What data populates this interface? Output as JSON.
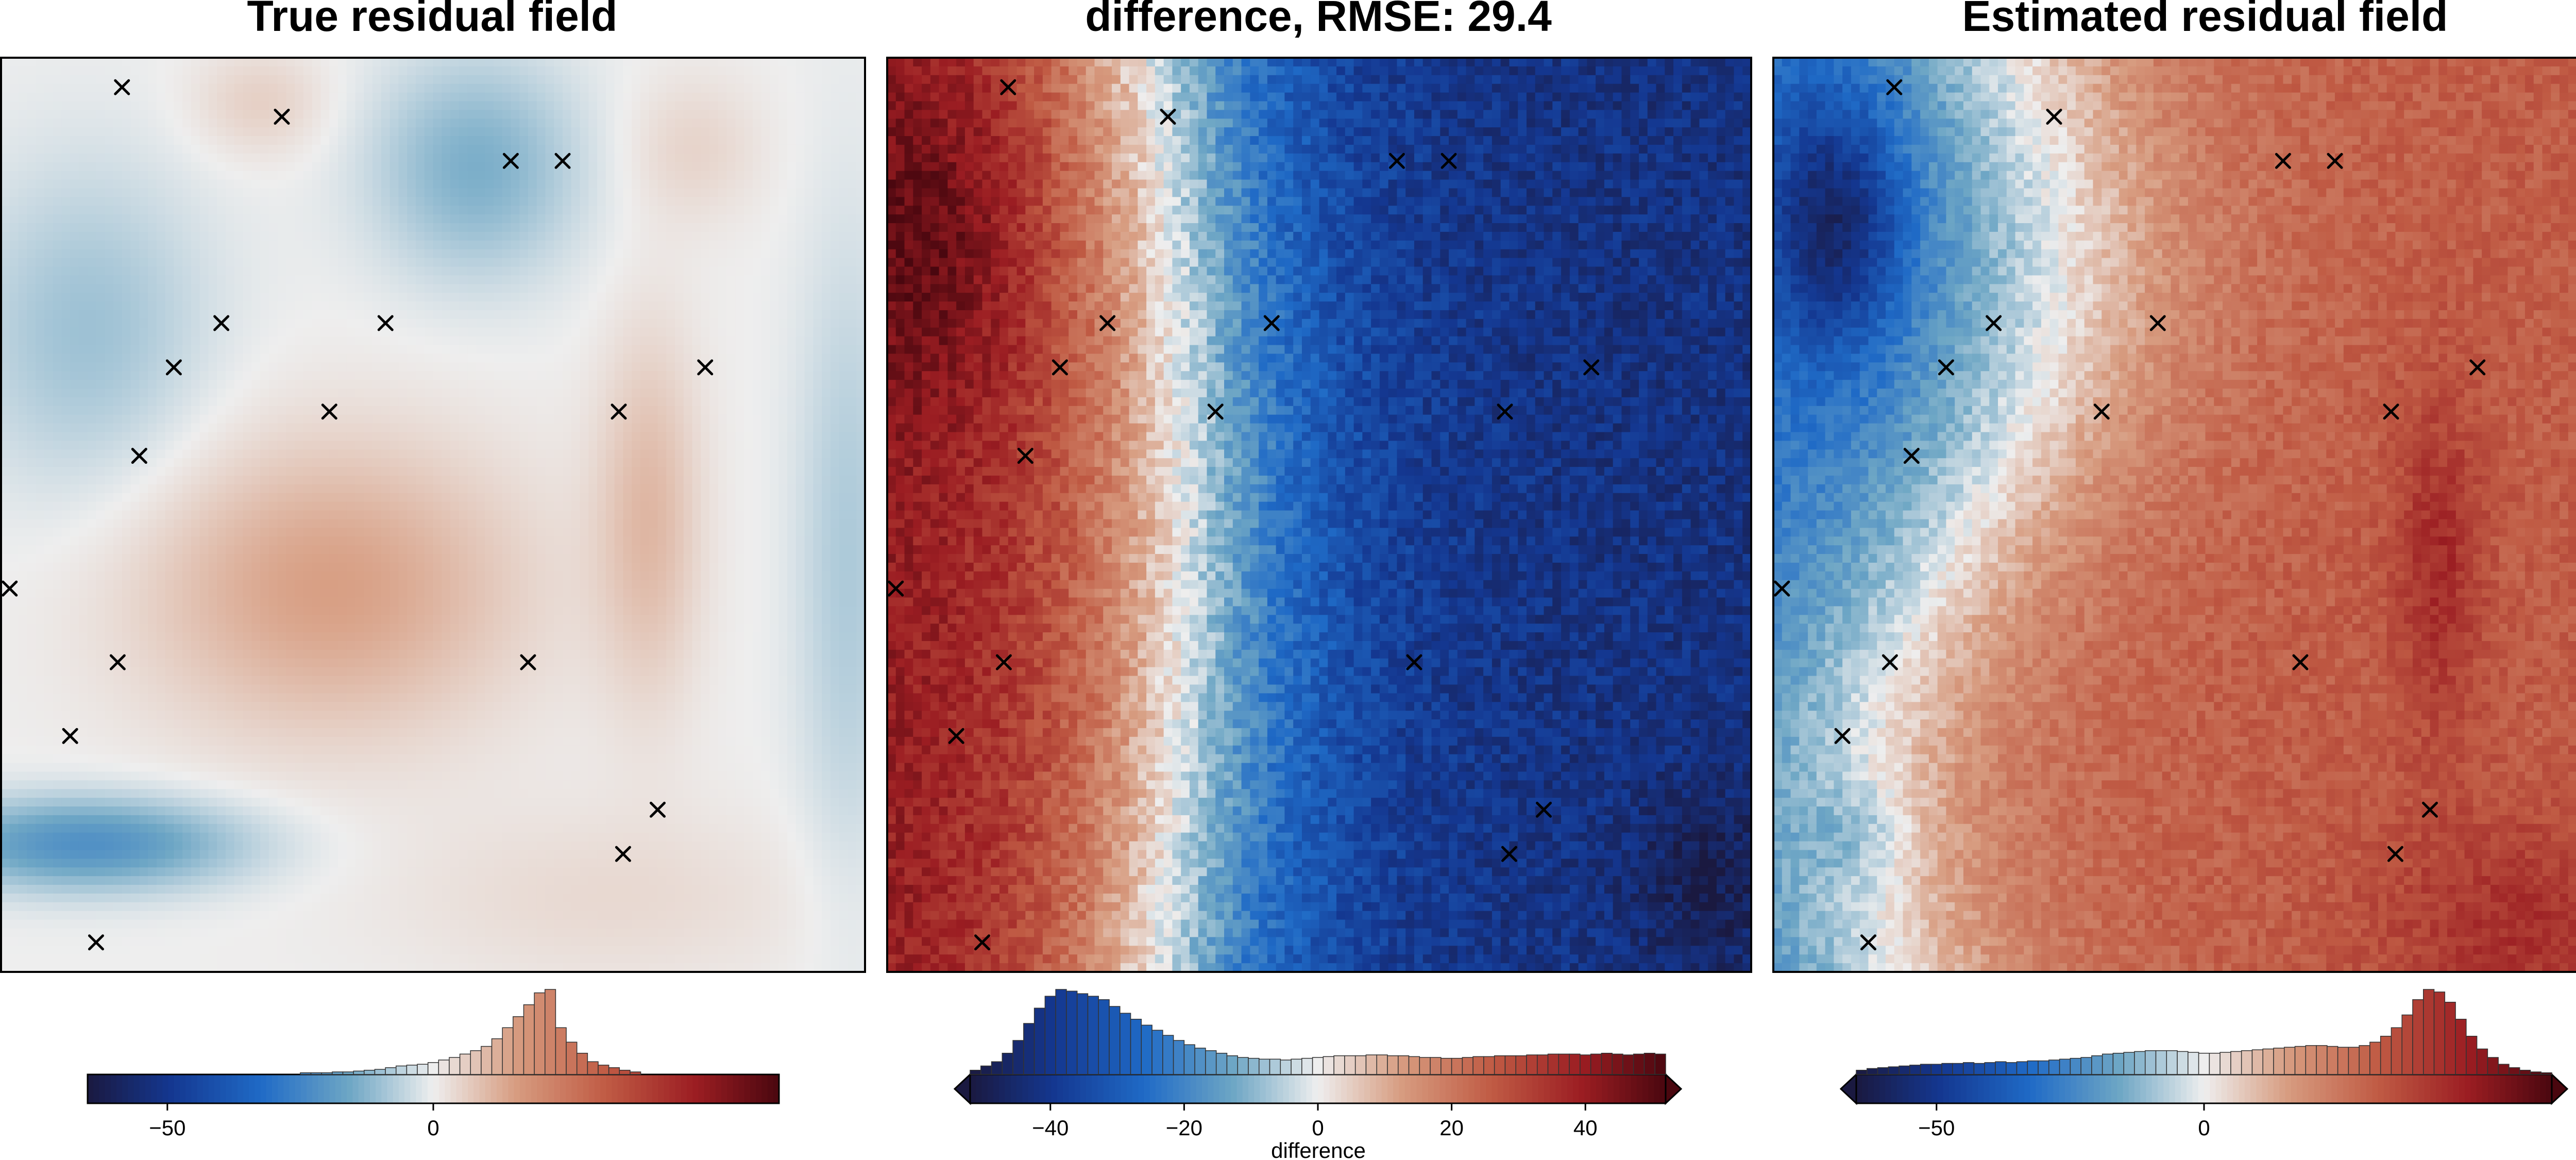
{
  "chart_data": [
    {
      "type": "heatmap",
      "title": "True residual field",
      "field": "true",
      "colormap": "vik",
      "colorbar": {
        "label": "",
        "range": [
          -65,
          65
        ],
        "ticks": [
          -50,
          0
        ],
        "tick_labels": [
          "−50",
          "0"
        ],
        "extend": false,
        "histogram": [
          0,
          0,
          0,
          0,
          0,
          0,
          0,
          0,
          0,
          0,
          0,
          0,
          0,
          0,
          0,
          0,
          0,
          0,
          0,
          0,
          0.02,
          0.02,
          0.02,
          0.03,
          0.03,
          0.04,
          0.05,
          0.06,
          0.08,
          0.1,
          0.11,
          0.12,
          0.14,
          0.17,
          0.2,
          0.24,
          0.28,
          0.33,
          0.42,
          0.55,
          0.68,
          0.82,
          0.96,
          1.0,
          0.55,
          0.38,
          0.25,
          0.15,
          0.11,
          0.08,
          0.05,
          0.03,
          0,
          0,
          0,
          0,
          0,
          0,
          0,
          0,
          0,
          0,
          0,
          0,
          0
        ]
      },
      "markers": [
        [
          -92,
          98
        ],
        [
          -55,
          96
        ],
        [
          -2,
          93
        ],
        [
          10,
          93
        ],
        [
          -69,
          82
        ],
        [
          -31,
          82
        ],
        [
          -80,
          79
        ],
        [
          43,
          79
        ],
        [
          -44,
          76
        ],
        [
          23,
          76
        ],
        [
          -88,
          73
        ],
        [
          -118,
          64
        ],
        [
          -93,
          59
        ],
        [
          2,
          59
        ],
        [
          -104,
          54
        ],
        [
          32,
          49
        ],
        [
          24,
          46
        ],
        [
          -98,
          40
        ]
      ]
    },
    {
      "type": "heatmap",
      "title": "difference, RMSE: 29.4",
      "field": "difference",
      "colormap": "vik",
      "colorbar": {
        "label": "difference",
        "range": [
          -52,
          52
        ],
        "ticks": [
          -40,
          -20,
          0,
          20,
          40
        ],
        "tick_labels": [
          "−40",
          "−20",
          "0",
          "20",
          "40"
        ],
        "extend": true,
        "histogram": [
          0.05,
          0.1,
          0.15,
          0.25,
          0.4,
          0.6,
          0.78,
          0.92,
          1.0,
          0.98,
          0.95,
          0.92,
          0.88,
          0.8,
          0.72,
          0.65,
          0.58,
          0.52,
          0.46,
          0.4,
          0.35,
          0.31,
          0.28,
          0.25,
          0.22,
          0.2,
          0.19,
          0.18,
          0.18,
          0.17,
          0.18,
          0.19,
          0.2,
          0.21,
          0.22,
          0.22,
          0.22,
          0.23,
          0.23,
          0.22,
          0.22,
          0.21,
          0.2,
          0.2,
          0.19,
          0.19,
          0.2,
          0.21,
          0.21,
          0.22,
          0.22,
          0.22,
          0.23,
          0.23,
          0.24,
          0.24,
          0.24,
          0.23,
          0.24,
          0.25,
          0.24,
          0.23,
          0.24,
          0.25,
          0.24
        ]
      },
      "markers": [
        [
          -92,
          98
        ],
        [
          -55,
          96
        ],
        [
          -2,
          93
        ],
        [
          10,
          93
        ],
        [
          -69,
          82
        ],
        [
          -31,
          82
        ],
        [
          -80,
          79
        ],
        [
          43,
          79
        ],
        [
          -44,
          76
        ],
        [
          23,
          76
        ],
        [
          -88,
          73
        ],
        [
          -118,
          64
        ],
        [
          -93,
          59
        ],
        [
          2,
          59
        ],
        [
          -104,
          54
        ],
        [
          32,
          49
        ],
        [
          24,
          46
        ],
        [
          -98,
          40
        ]
      ]
    },
    {
      "type": "heatmap",
      "title": "Estimated residual field",
      "field": "estimated",
      "colormap": "vik",
      "colorbar": {
        "label": "",
        "range": [
          -65,
          65
        ],
        "ticks": [
          -50,
          0
        ],
        "tick_labels": [
          "−50",
          "0"
        ],
        "extend": true,
        "histogram": [
          0.05,
          0.07,
          0.08,
          0.09,
          0.1,
          0.11,
          0.12,
          0.12,
          0.13,
          0.13,
          0.14,
          0.13,
          0.14,
          0.15,
          0.14,
          0.15,
          0.16,
          0.16,
          0.17,
          0.18,
          0.19,
          0.2,
          0.22,
          0.24,
          0.25,
          0.26,
          0.27,
          0.28,
          0.28,
          0.28,
          0.27,
          0.26,
          0.25,
          0.25,
          0.26,
          0.27,
          0.28,
          0.29,
          0.3,
          0.31,
          0.32,
          0.33,
          0.34,
          0.34,
          0.33,
          0.32,
          0.32,
          0.34,
          0.38,
          0.45,
          0.55,
          0.7,
          0.88,
          1.0,
          0.97,
          0.85,
          0.65,
          0.45,
          0.3,
          0.2,
          0.12,
          0.08,
          0.05,
          0.03,
          0.02
        ]
      },
      "markers": [
        [
          -92,
          98
        ],
        [
          -55,
          96
        ],
        [
          -2,
          93
        ],
        [
          10,
          93
        ],
        [
          -69,
          82
        ],
        [
          -31,
          82
        ],
        [
          -80,
          79
        ],
        [
          43,
          79
        ],
        [
          -44,
          76
        ],
        [
          23,
          76
        ],
        [
          -88,
          73
        ],
        [
          -118,
          64
        ],
        [
          -93,
          59
        ],
        [
          2,
          59
        ],
        [
          -104,
          54
        ],
        [
          32,
          49
        ],
        [
          24,
          46
        ],
        [
          -98,
          40
        ]
      ]
    }
  ]
}
